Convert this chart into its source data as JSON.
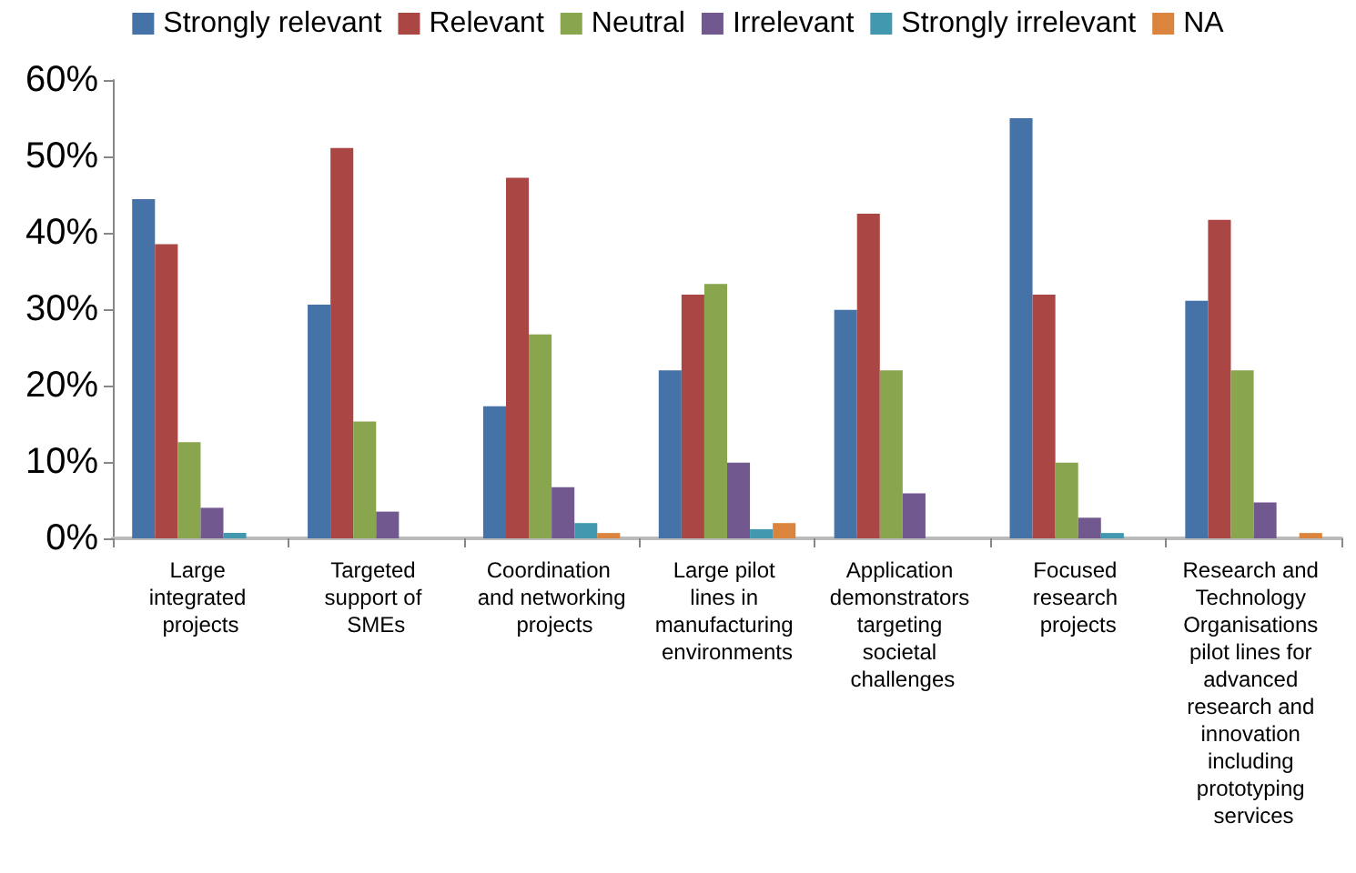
{
  "chart_data": {
    "type": "bar",
    "categories": [
      "Large integrated projects",
      "Targeted support of SMEs",
      "Coordination and networking projects",
      "Large pilot lines in manufacturing environments",
      "Application demonstrators targeting societal challenges",
      "Focused research projects",
      "Research and Technology Organisations pilot lines for advanced research and innovation including prototyping services"
    ],
    "series": [
      {
        "name": "Strongly relevant",
        "color": "#4572a7",
        "values": [
          44.4,
          30.6,
          17.3,
          22,
          29.9,
          55,
          31.1
        ]
      },
      {
        "name": "Relevant",
        "color": "#aa4643",
        "values": [
          38.5,
          51.1,
          47.2,
          31.9,
          42.5,
          31.9,
          41.7
        ]
      },
      {
        "name": "Neutral",
        "color": "#89a54e",
        "values": [
          12.6,
          15.3,
          26.7,
          33.3,
          22,
          9.9,
          22
        ]
      },
      {
        "name": "Irrelevant",
        "color": "#71588f",
        "values": [
          4,
          3.5,
          6.7,
          9.9,
          5.9,
          2.7,
          4.7
        ]
      },
      {
        "name": "Strongly irrelevant",
        "color": "#4198af",
        "values": [
          0.7,
          0,
          2,
          1.2,
          0,
          0.7,
          0
        ]
      },
      {
        "name": "NA",
        "color": "#db843d",
        "values": [
          0,
          0,
          0.7,
          2,
          0,
          0,
          0.7
        ]
      }
    ],
    "ylim": [
      0,
      60
    ],
    "yticks": [
      {
        "value": 0,
        "label": "0%"
      },
      {
        "value": 10,
        "label": "10%"
      },
      {
        "value": 20,
        "label": "20%"
      },
      {
        "value": 30,
        "label": "30%"
      },
      {
        "value": 40,
        "label": "40%"
      },
      {
        "value": 50,
        "label": "50%"
      },
      {
        "value": 60,
        "label": "60%"
      }
    ],
    "grid": false,
    "legend": "top"
  }
}
